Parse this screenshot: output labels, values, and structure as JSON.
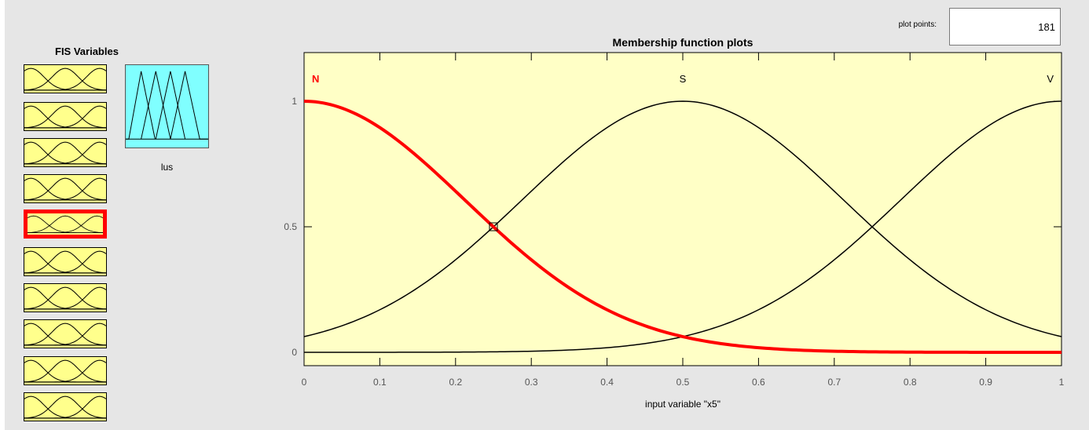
{
  "fis_variables": {
    "title": "FIS Variables",
    "input_count": 10,
    "selected_index": 4,
    "output": {
      "name": "lus",
      "color": "#80ffff"
    },
    "input_color": "#ffff8c",
    "selected_color": "#ff0000"
  },
  "plot_points": {
    "label": "plot points:",
    "value": "181"
  },
  "chart_data": {
    "type": "line",
    "title": "Membership function plots",
    "xlabel": "input variable \"x5\"",
    "ylabel": "",
    "xlim": [
      0,
      1
    ],
    "ylim": [
      0,
      1
    ],
    "x_ticks": [
      "0",
      "0.1",
      "0.2",
      "0.3",
      "0.4",
      "0.5",
      "0.6",
      "0.7",
      "0.8",
      "0.9",
      "1"
    ],
    "y_ticks": [
      "0",
      "0.5",
      "1"
    ],
    "background": "#ffffc6",
    "series": [
      {
        "name": "N",
        "mf_type": "gaussmf",
        "sigma": 0.2123,
        "center": 0.0,
        "color": "#ff0000",
        "selected": true
      },
      {
        "name": "S",
        "mf_type": "gaussmf",
        "sigma": 0.2123,
        "center": 0.5,
        "color": "#000000",
        "selected": false
      },
      {
        "name": "V",
        "mf_type": "gaussmf",
        "sigma": 0.2123,
        "center": 1.0,
        "color": "#000000",
        "selected": false
      }
    ],
    "marker": {
      "x": 0.25,
      "y": 0.5
    }
  }
}
